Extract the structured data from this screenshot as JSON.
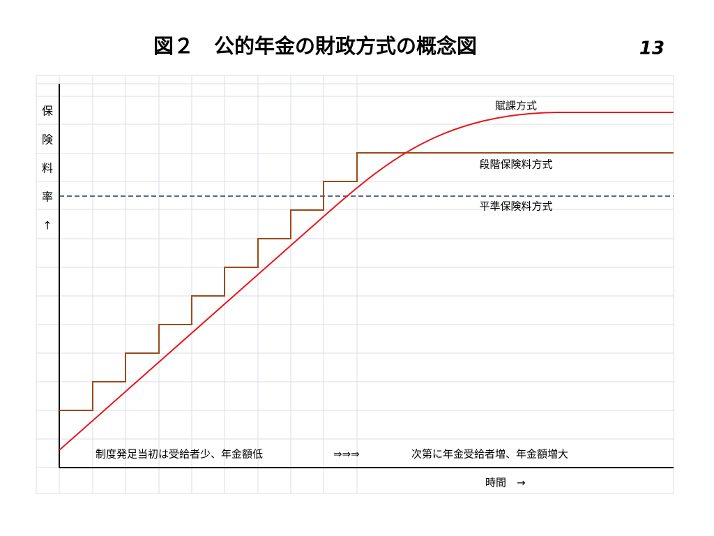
{
  "title": "図２　公的年金の財政方式の概念図",
  "page_number": "13",
  "y_axis_label": [
    "保",
    "険",
    "料",
    "率",
    "↑"
  ],
  "x_axis_label": "時間　→",
  "curves": {
    "pay_as_you_go": "賦課方式",
    "stepped": "段階保険料方式",
    "level": "平準保険料方式"
  },
  "bottom_notes": [
    "制度発足当初は受給者少、年金額低",
    "⇒⇒⇒",
    "次第に年金受給者増、年金額増大"
  ]
}
